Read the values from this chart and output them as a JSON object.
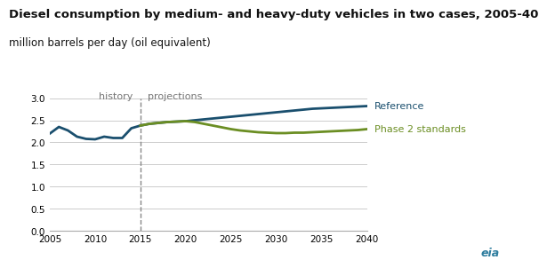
{
  "title_line1": "Diesel consumption by medium- and heavy-duty vehicles in two cases, 2005-40",
  "title_line2": "million barrels per day (oil equivalent)",
  "title_fontsize": 9.5,
  "subtitle_fontsize": 8.5,
  "reference_color": "#1a4f6e",
  "phase2_color": "#6b8e23",
  "background_color": "#ffffff",
  "grid_color": "#cccccc",
  "divider_x": 2015,
  "history_label": "history",
  "projections_label": "projections",
  "reference_label": "Reference",
  "phase2_label": "Phase 2 standards",
  "xlim": [
    2005,
    2040
  ],
  "ylim": [
    0.0,
    3.0
  ],
  "yticks": [
    0.0,
    0.5,
    1.0,
    1.5,
    2.0,
    2.5,
    3.0
  ],
  "xticks": [
    2005,
    2010,
    2015,
    2020,
    2025,
    2030,
    2035,
    2040
  ],
  "reference_x": [
    2005,
    2006,
    2007,
    2008,
    2009,
    2010,
    2011,
    2012,
    2013,
    2014,
    2015,
    2016,
    2017,
    2018,
    2019,
    2020,
    2021,
    2022,
    2023,
    2024,
    2025,
    2026,
    2027,
    2028,
    2029,
    2030,
    2031,
    2032,
    2033,
    2034,
    2035,
    2036,
    2037,
    2038,
    2039,
    2040
  ],
  "reference_y": [
    2.2,
    2.35,
    2.27,
    2.13,
    2.08,
    2.07,
    2.13,
    2.1,
    2.1,
    2.32,
    2.38,
    2.42,
    2.44,
    2.46,
    2.47,
    2.48,
    2.5,
    2.52,
    2.54,
    2.56,
    2.58,
    2.6,
    2.62,
    2.64,
    2.66,
    2.68,
    2.7,
    2.72,
    2.74,
    2.76,
    2.77,
    2.78,
    2.79,
    2.8,
    2.81,
    2.82
  ],
  "phase2_x": [
    2015,
    2016,
    2017,
    2018,
    2019,
    2020,
    2021,
    2022,
    2023,
    2024,
    2025,
    2026,
    2027,
    2028,
    2029,
    2030,
    2031,
    2032,
    2033,
    2034,
    2035,
    2036,
    2037,
    2038,
    2039,
    2040
  ],
  "phase2_y": [
    2.38,
    2.42,
    2.44,
    2.46,
    2.47,
    2.48,
    2.46,
    2.42,
    2.38,
    2.34,
    2.3,
    2.27,
    2.25,
    2.23,
    2.22,
    2.21,
    2.21,
    2.22,
    2.22,
    2.23,
    2.24,
    2.25,
    2.26,
    2.27,
    2.28,
    2.3
  ],
  "line_width": 2.0
}
